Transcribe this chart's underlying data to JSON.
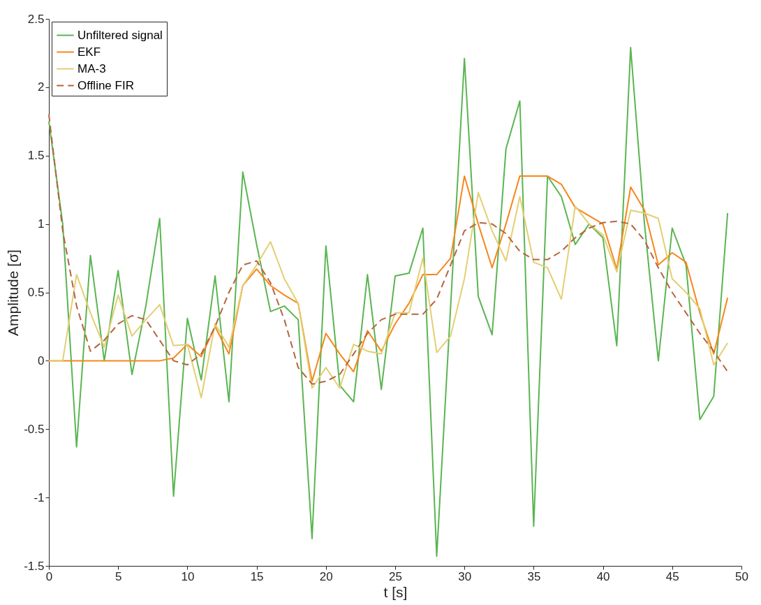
{
  "chart_data": {
    "type": "line",
    "xlabel": "t [s]",
    "ylabel": "Amplitude [σ]",
    "x": [
      0,
      1,
      2,
      3,
      4,
      5,
      6,
      7,
      8,
      9,
      10,
      11,
      12,
      13,
      14,
      15,
      16,
      17,
      18,
      19,
      20,
      21,
      22,
      23,
      24,
      25,
      26,
      27,
      28,
      29,
      30,
      31,
      32,
      33,
      34,
      35,
      36,
      37,
      38,
      39,
      40,
      41,
      42,
      43,
      44,
      45,
      46,
      47,
      48,
      49
    ],
    "xlim": [
      0,
      50
    ],
    "xticks": [
      0,
      5,
      10,
      15,
      20,
      25,
      30,
      35,
      40,
      45,
      50
    ],
    "ylim": [
      -1.5,
      2.5
    ],
    "yticks": [
      -1.5,
      -1,
      -0.5,
      0,
      0.5,
      1,
      1.5,
      2,
      2.5
    ],
    "grid": false,
    "legend": "top left",
    "marker": "none",
    "series": [
      {
        "name": "Unfiltered signal",
        "color": "#5ab552",
        "line_style": "solid",
        "values": [
          1.75,
          1.0,
          -0.63,
          0.77,
          0.0,
          0.66,
          -0.1,
          0.4,
          1.04,
          -0.99,
          0.31,
          -0.14,
          0.62,
          -0.3,
          1.38,
          0.85,
          0.36,
          0.4,
          0.3,
          -1.3,
          0.84,
          -0.18,
          -0.3,
          0.63,
          -0.21,
          0.62,
          0.64,
          0.97,
          -1.43,
          0.39,
          2.21,
          0.47,
          0.19,
          1.55,
          1.9,
          -1.21,
          1.35,
          1.2,
          0.85,
          1.0,
          0.9,
          0.11,
          2.29,
          1.0,
          0.0,
          0.97,
          0.7,
          -0.43,
          -0.26,
          1.08
        ]
      },
      {
        "name": "EKF",
        "color": "#f7861c",
        "line_style": "solid",
        "values": [
          0,
          0,
          0,
          0,
          0,
          0,
          0,
          0,
          0,
          0.02,
          0.12,
          0.03,
          0.25,
          0.05,
          0.55,
          0.67,
          0.55,
          0.48,
          0.42,
          -0.15,
          0.2,
          0.05,
          -0.08,
          0.22,
          0.07,
          0.27,
          0.42,
          0.63,
          0.63,
          0.75,
          1.35,
          1.0,
          0.68,
          1.0,
          1.35,
          1.35,
          1.35,
          1.29,
          1.12,
          1.06,
          1.0,
          0.67,
          1.27,
          1.1,
          0.7,
          0.79,
          0.72,
          0.35,
          0.05,
          0.46
        ]
      },
      {
        "name": "MA-3",
        "color": "#e3cf73",
        "line_style": "solid",
        "values": [
          0,
          0,
          0.63,
          0.35,
          0.1,
          0.48,
          0.18,
          0.3,
          0.41,
          0.11,
          0.12,
          -0.27,
          0.27,
          0.1,
          0.55,
          0.7,
          0.87,
          0.6,
          0.42,
          -0.2,
          -0.05,
          -0.2,
          0.12,
          0.07,
          0.05,
          0.35,
          0.35,
          0.75,
          0.06,
          0.18,
          0.6,
          1.23,
          0.95,
          0.73,
          1.2,
          0.72,
          0.68,
          0.45,
          1.13,
          1.0,
          0.92,
          0.65,
          1.1,
          1.08,
          1.04,
          0.6,
          0.5,
          0.38,
          -0.03,
          0.13
        ]
      },
      {
        "name": "Offline FIR",
        "color": "#b5653f",
        "line_style": "dashed",
        "values": [
          1.8,
          0.95,
          0.4,
          0.07,
          0.15,
          0.27,
          0.33,
          0.3,
          0.15,
          0.0,
          -0.03,
          0.05,
          0.25,
          0.5,
          0.7,
          0.73,
          0.57,
          0.3,
          -0.05,
          -0.17,
          -0.15,
          -0.1,
          0.05,
          0.2,
          0.3,
          0.34,
          0.34,
          0.34,
          0.45,
          0.7,
          0.95,
          1.01,
          1.0,
          0.93,
          0.8,
          0.74,
          0.74,
          0.8,
          0.9,
          0.97,
          1.01,
          1.02,
          1.0,
          0.88,
          0.68,
          0.5,
          0.35,
          0.2,
          0.07,
          -0.08
        ]
      }
    ]
  }
}
